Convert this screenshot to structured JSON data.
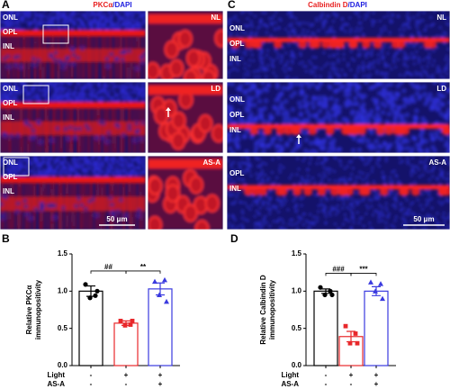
{
  "panels": {
    "A": {
      "letter": "A",
      "title_parts": [
        "PKCα",
        "/DAPI"
      ],
      "rows": [
        {
          "layers": [
            "ONL",
            "OPL",
            "INL"
          ],
          "condition": "NL"
        },
        {
          "layers": [
            "ONL",
            "OPL",
            "INL"
          ],
          "condition": "LD"
        },
        {
          "layers": [
            "ONL",
            "OPL",
            "INL"
          ],
          "condition": "AS-A"
        }
      ],
      "scale": "50 μm"
    },
    "C": {
      "letter": "C",
      "title_parts": [
        "Calbindin D",
        "/DAPI"
      ],
      "rows": [
        {
          "layers": [
            "ONL",
            "OPL",
            "INL"
          ],
          "condition": "NL"
        },
        {
          "layers": [
            "ONL",
            "OPL",
            "INL"
          ],
          "condition": "LD"
        },
        {
          "layers": [
            "OPL",
            "INL"
          ],
          "condition": "AS-A"
        }
      ],
      "scale": "50 μm"
    }
  },
  "chart_data": [
    {
      "type": "bar",
      "letter": "B",
      "ylabel": [
        "Relative PKCα",
        "immunopositivity"
      ],
      "values": [
        1.0,
        0.57,
        1.03
      ],
      "errors": [
        0.07,
        0.03,
        0.08
      ],
      "colors": [
        "#000000",
        "#e8282b",
        "#3a3adf"
      ],
      "markers": [
        "circle",
        "square",
        "triangle"
      ],
      "points": [
        [
          1.09,
          0.94,
          0.91,
          1.0
        ],
        [
          0.6,
          0.55,
          0.54,
          0.6
        ],
        [
          1.13,
          1.15,
          0.95,
          0.86
        ]
      ],
      "conditions": [
        {
          "name": "Light",
          "labels": [
            "-",
            "+",
            "+"
          ]
        },
        {
          "name": "AS-A",
          "labels": [
            "-",
            "-",
            "+"
          ]
        }
      ],
      "annotations": [
        {
          "text": "##",
          "bars": [
            0,
            1
          ]
        },
        {
          "text": "**",
          "bars": [
            1,
            2
          ]
        }
      ],
      "ylim": [
        0,
        1.5
      ],
      "yticks": [
        {
          "value": 0,
          "label": "0.0"
        },
        {
          "value": 0.5,
          "label": "0.5"
        },
        {
          "value": 1,
          "label": "1.0"
        },
        {
          "value": 1.5,
          "label": "1.5"
        }
      ]
    },
    {
      "type": "bar",
      "letter": "D",
      "ylabel": [
        "Relative Calbindin D",
        "immunopositivity"
      ],
      "values": [
        1.0,
        0.39,
        1.0
      ],
      "errors": [
        0.03,
        0.07,
        0.06
      ],
      "colors": [
        "#000000",
        "#e8282b",
        "#3a3adf"
      ],
      "markers": [
        "circle",
        "square",
        "triangle"
      ],
      "points": [
        [
          1.05,
          1.0,
          0.95,
          0.95
        ],
        [
          0.53,
          0.43,
          0.3,
          0.3
        ],
        [
          1.12,
          1.1,
          1.0,
          0.9
        ]
      ],
      "conditions": [
        {
          "name": "Light",
          "labels": [
            "-",
            "+",
            "+"
          ]
        },
        {
          "name": "AS-A",
          "labels": [
            "-",
            "-",
            "+"
          ]
        }
      ],
      "annotations": [
        {
          "text": "###",
          "bars": [
            0,
            1
          ]
        },
        {
          "text": "***",
          "bars": [
            1,
            2
          ]
        }
      ],
      "ylim": [
        0,
        1.5
      ],
      "yticks": [
        {
          "value": 0,
          "label": "0.0"
        },
        {
          "value": 0.5,
          "label": "0.5"
        },
        {
          "value": 1,
          "label": "1.0"
        },
        {
          "value": 1.5,
          "label": "1.5"
        }
      ]
    }
  ]
}
